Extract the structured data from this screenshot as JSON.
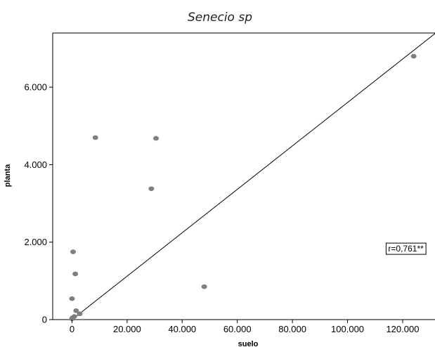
{
  "chart_data": {
    "type": "scatter",
    "title": "Senecio sp",
    "xlabel": "suelo",
    "ylabel": "planta",
    "xlim": [
      -7000,
      132000
    ],
    "ylim": [
      0,
      7400
    ],
    "xticks": [
      0,
      20000,
      40000,
      60000,
      80000,
      100000,
      120000
    ],
    "xtick_labels": [
      "0",
      "20.000",
      "40.000",
      "60.000",
      "80.000",
      "100.000",
      "120.000"
    ],
    "yticks": [
      0,
      2000,
      4000,
      6000
    ],
    "ytick_labels": [
      "0",
      "2.000",
      "4.000",
      "6.000"
    ],
    "grid": false,
    "points": [
      {
        "x": 124000,
        "y": 6800
      },
      {
        "x": 8500,
        "y": 4700
      },
      {
        "x": 30500,
        "y": 4680
      },
      {
        "x": 28800,
        "y": 3380
      },
      {
        "x": 48000,
        "y": 850
      },
      {
        "x": 400,
        "y": 1750
      },
      {
        "x": 1200,
        "y": 1180
      },
      {
        "x": 0,
        "y": 540
      },
      {
        "x": 1500,
        "y": 230
      },
      {
        "x": 2800,
        "y": 150
      },
      {
        "x": 800,
        "y": 80
      },
      {
        "x": 200,
        "y": 50
      },
      {
        "x": 0,
        "y": 20
      }
    ],
    "fit_line": {
      "x": [
        0,
        132000
      ],
      "y": [
        0,
        7400
      ]
    },
    "annotation": {
      "text": "r=0,761**",
      "x": 114000,
      "y": 1830
    },
    "colors": {
      "point": "#7f7f7f",
      "line": "#000000",
      "frame": "#000000"
    }
  }
}
